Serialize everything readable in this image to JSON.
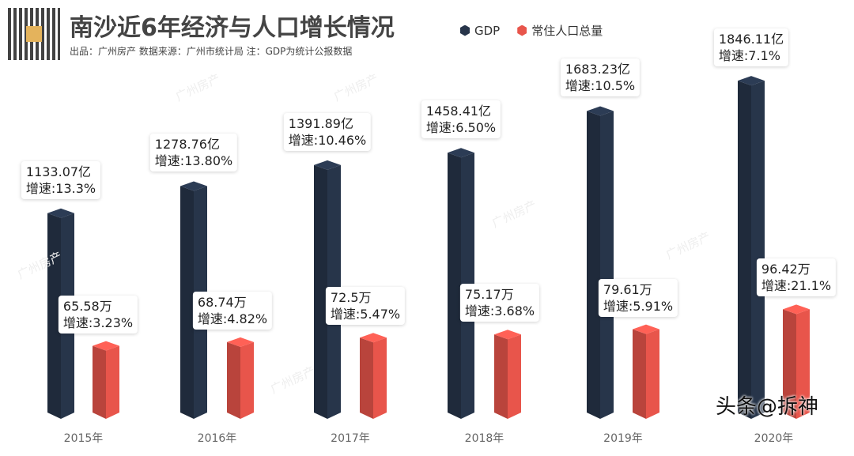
{
  "header": {
    "title": "南沙近6年经济与人口增长情况",
    "subtitle": "出品：广州房产   数据来源：广州市统计局    注：GDP为统计公报数据"
  },
  "watermark": "广州房产",
  "signature": "头条@拆神",
  "chart_data": {
    "type": "bar",
    "categories": [
      "2015年",
      "2016年",
      "2017年",
      "2018年",
      "2019年",
      "2020年"
    ],
    "series": [
      {
        "name": "GDP",
        "color": "#27354a",
        "values": [
          1133.07,
          1278.76,
          1391.89,
          1458.41,
          1683.23,
          1846.11
        ],
        "labels": [
          "1133.07亿",
          "1278.76亿",
          "1391.89亿",
          "1458.41亿",
          "1683.23亿",
          "1846.11亿"
        ],
        "growth": [
          "增速:13.3%",
          "增速:13.80%",
          "增速:10.46%",
          "增速:6.50%",
          "增速:10.5%",
          "增速:7.1%"
        ]
      },
      {
        "name": "常住人口总量",
        "color": "#e8554b",
        "values": [
          65.58,
          68.74,
          72.5,
          75.17,
          79.61,
          96.42
        ],
        "labels": [
          "65.58万",
          "68.74万",
          "72.5万",
          "75.17万",
          "79.61万",
          "96.42万"
        ],
        "growth": [
          "增速:3.23%",
          "增速:4.82%",
          "增速:5.47%",
          "增速:3.68%",
          "增速:5.91%",
          "增速:21.1%"
        ]
      }
    ]
  }
}
